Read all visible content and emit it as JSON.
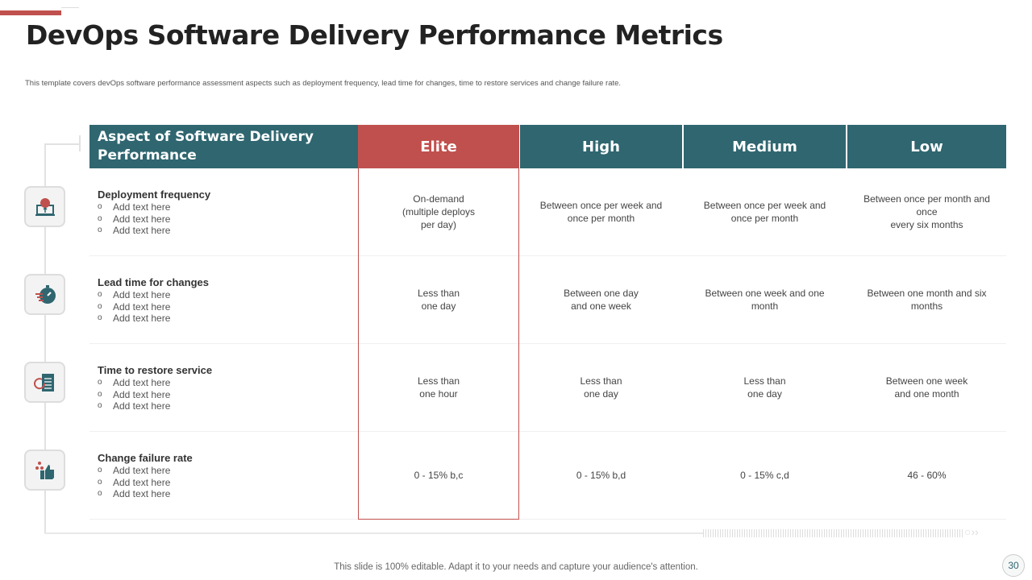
{
  "title": "DevOps Software Delivery Performance Metrics",
  "subtitle": "This template  covers devOps software performance assessment aspects such as deployment frequency, lead time  for changes, time to restore services and change failure rate.",
  "colors": {
    "teal": "#2f6670",
    "red": "#c0504d"
  },
  "table": {
    "headers": [
      "Aspect of Software Delivery Performance",
      "Elite",
      "High",
      "Medium",
      "Low"
    ],
    "rows": [
      {
        "icon": "laptop-upload-icon",
        "aspect": "Deployment frequency",
        "bullets": [
          "Add text here",
          "Add text here",
          "Add text here"
        ],
        "cells": [
          "On-demand\n(multiple deploys\nper day)",
          "Between once per week and once per month",
          "Between once per week and once per month",
          "Between once per month and once\nevery  six months"
        ]
      },
      {
        "icon": "stopwatch-icon",
        "aspect": "Lead time for changes",
        "bullets": [
          "Add text here",
          "Add text here",
          "Add text here"
        ],
        "cells": [
          "Less than\none day",
          "Between one day\nand one week",
          "Between one week and one month",
          "Between one month and six months"
        ]
      },
      {
        "icon": "restore-document-icon",
        "aspect": "Time to restore service",
        "bullets": [
          "Add text here",
          "Add text here",
          "Add text here"
        ],
        "cells": [
          "Less than\none hour",
          "Less than\none day",
          "Less than\none day",
          "Between one week\nand one month"
        ]
      },
      {
        "icon": "thumbs-up-stars-icon",
        "aspect": "Change failure rate",
        "bullets": [
          "Add text here",
          "Add text here",
          "Add text here"
        ],
        "cells": [
          "0 - 15% b,c",
          "0 - 15% b,d",
          "0 - 15% c,d",
          "46 - 60%"
        ]
      }
    ]
  },
  "bullet_marker": "o",
  "footer": "This slide is 100% editable. Adapt it to your needs and capture your audience's attention.",
  "page_number": "30"
}
